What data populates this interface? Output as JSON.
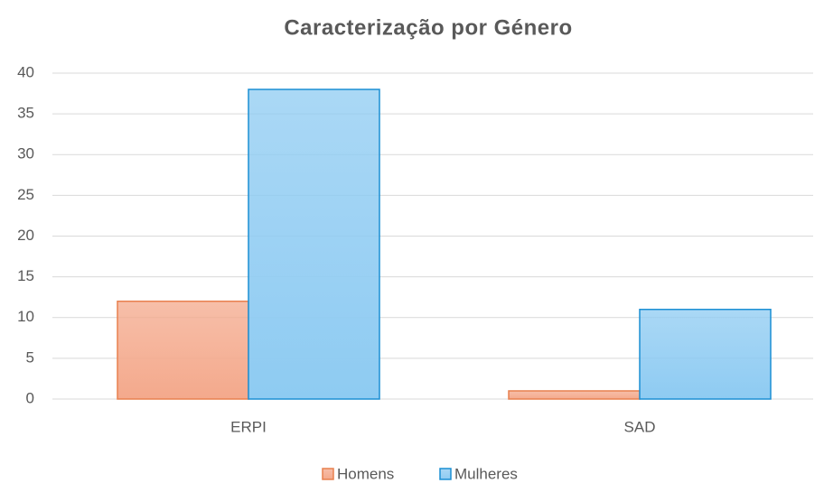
{
  "chart_data": {
    "type": "bar",
    "title": "Caracterização por Género",
    "categories": [
      "ERPI",
      "SAD"
    ],
    "series": [
      {
        "name": "Homens",
        "color": "#f4a98c",
        "edge_color": "#e8804f",
        "values": [
          12,
          1
        ]
      },
      {
        "name": "Mulheres",
        "color": "#8ecbf2",
        "edge_color": "#1b8fd4",
        "values": [
          38,
          11
        ]
      }
    ],
    "ylim": [
      0,
      40
    ],
    "yticks": [
      0,
      5,
      10,
      15,
      20,
      25,
      30,
      35,
      40
    ],
    "grid": true,
    "legend": "bottom"
  }
}
